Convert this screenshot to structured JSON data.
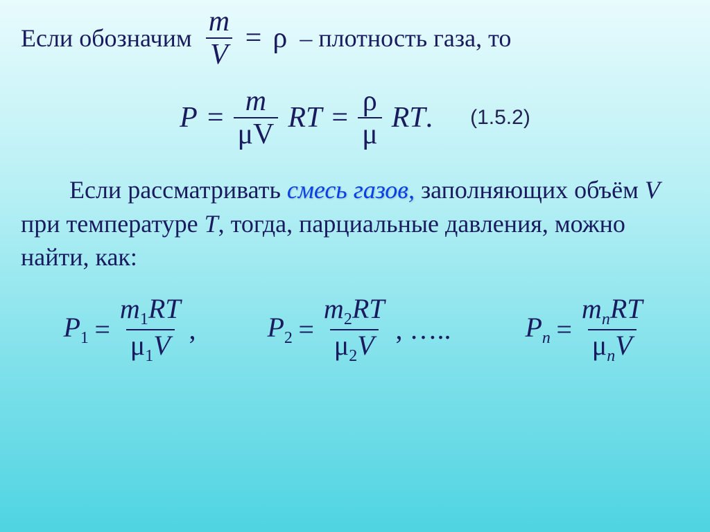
{
  "colors": {
    "text": "#1a1a5e",
    "emphasis": "#0a3fe6",
    "bg_top": "#e8fbfd",
    "bg_bottom": "#4fd4e2"
  },
  "fontsize": {
    "body": 36,
    "equation": 42,
    "partial": 40,
    "eqnum": 30
  },
  "line1": {
    "pre": "Если обозначим",
    "frac_num": "m",
    "frac_den": "V",
    "eq": "=",
    "rho": "ρ",
    "post": "– плотность газа, то"
  },
  "main_eq": {
    "P": "P",
    "eq1": "=",
    "frac1_num": "m",
    "frac1_den": "μV",
    "RT1": "RT",
    "eq2": "=",
    "frac2_num": "ρ",
    "frac2_den": "μ",
    "RT2": "RT",
    "dot": ".",
    "number": "(1.5.2)"
  },
  "para": {
    "t1": "Если рассматривать ",
    "emph": "смесь газов",
    "comma": ", ",
    "t2": "заполняющих объём ",
    "V": "V",
    "t3": " при температуре ",
    "T": "Т",
    "t4": ", тогда, парциальные давления, можно найти, как:"
  },
  "partials": {
    "p1": {
      "P": "P",
      "sub": "1",
      "eq": "=",
      "num_m": "m",
      "num_sub": "1",
      "num_RT": "RT",
      "den_mu": "μ",
      "den_sub": "1",
      "den_V": "V",
      "tail": ","
    },
    "p2": {
      "P": "P",
      "sub": "2",
      "eq": "=",
      "num_m": "m",
      "num_sub": "2",
      "num_RT": "RT",
      "den_mu": "μ",
      "den_sub": "2",
      "den_V": "V",
      "tail": ", ….."
    },
    "pn": {
      "P": "P",
      "sub": "n",
      "eq": "=",
      "num_m": "m",
      "num_sub": "n",
      "num_RT": "RT",
      "den_mu": "μ",
      "den_sub": "n",
      "den_V": "V",
      "tail": ""
    }
  }
}
